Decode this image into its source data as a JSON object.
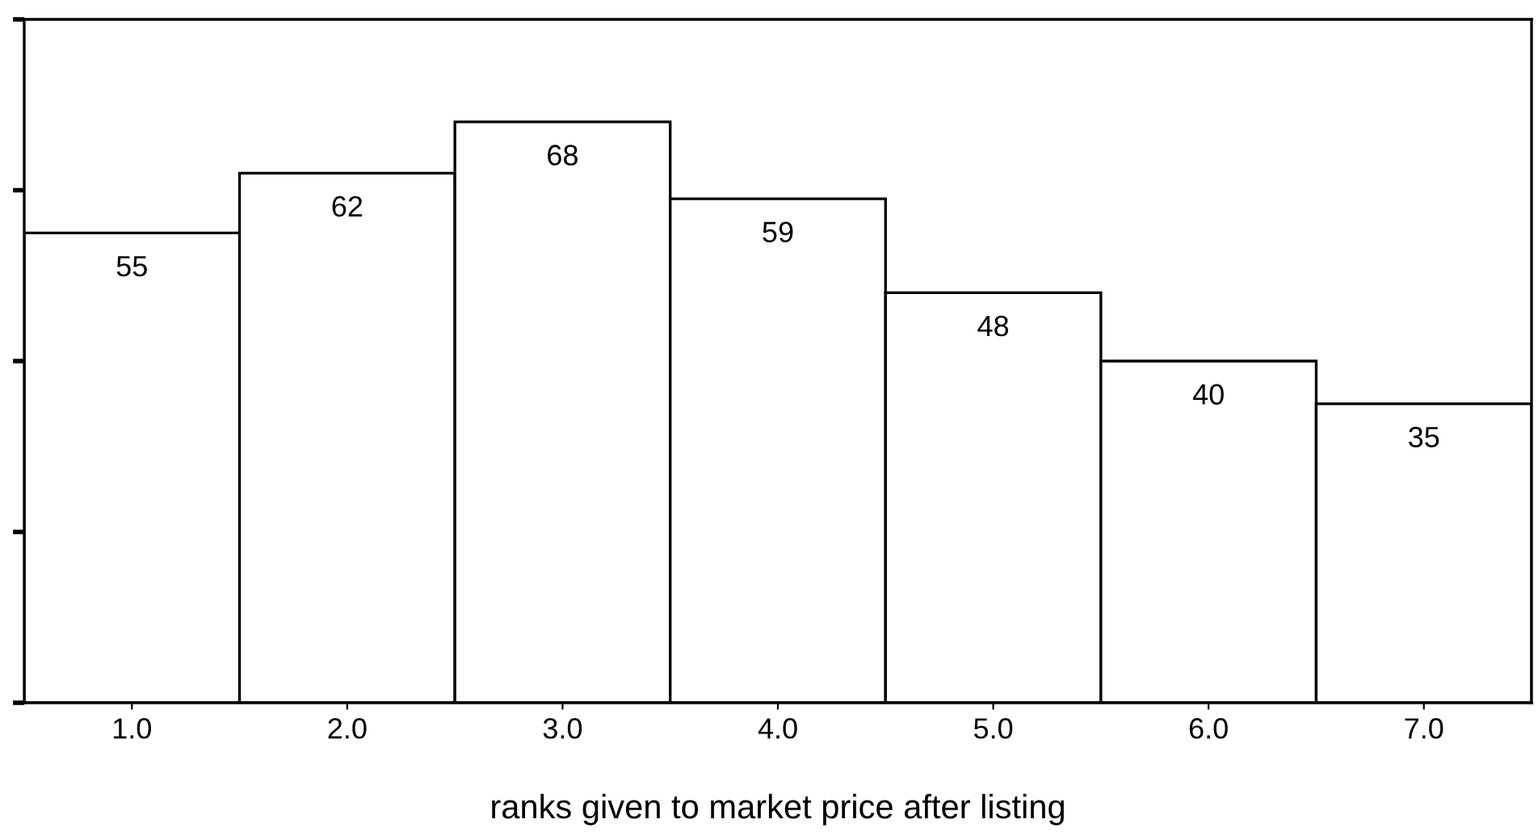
{
  "chart_data": {
    "type": "bar",
    "xlabel": "ranks given to market price after listing",
    "categories": [
      "1.0",
      "2.0",
      "3.0",
      "4.0",
      "5.0",
      "6.0",
      "7.0"
    ],
    "values": [
      55,
      62,
      68,
      59,
      48,
      40,
      35
    ],
    "color": "#ffffff",
    "data_labels": true,
    "ylim": [
      0,
      80
    ],
    "yticks": [
      {
        "value": 0,
        "label": null
      },
      {
        "value": 20,
        "label": null
      },
      {
        "value": 40,
        "label": null
      },
      {
        "value": 60,
        "label": null
      },
      {
        "value": 80,
        "label": null
      }
    ],
    "tick_labels": "x",
    "grid": false
  }
}
